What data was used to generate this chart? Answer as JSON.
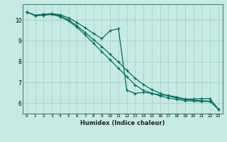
{
  "xlabel": "Humidex (Indice chaleur)",
  "bg_color": "#c8eae4",
  "grid_color": "#a0ccc4",
  "line_color": "#007060",
  "xlim": [
    -0.5,
    23.5
  ],
  "ylim": [
    5.5,
    10.75
  ],
  "yticks": [
    6,
    7,
    8,
    9,
    10
  ],
  "xticks": [
    0,
    1,
    2,
    3,
    4,
    5,
    6,
    7,
    8,
    9,
    10,
    11,
    12,
    13,
    14,
    15,
    16,
    17,
    18,
    19,
    20,
    21,
    22,
    23
  ],
  "series1_x": [
    0,
    1,
    2,
    3,
    4,
    5,
    6,
    7,
    8,
    9,
    10,
    11,
    12,
    13,
    14,
    15,
    16,
    17,
    18,
    19,
    20,
    21,
    22,
    23
  ],
  "series1_y": [
    10.38,
    10.22,
    10.27,
    10.3,
    10.25,
    10.1,
    9.88,
    9.62,
    9.35,
    9.1,
    9.48,
    9.58,
    6.62,
    6.47,
    6.52,
    6.47,
    6.4,
    6.37,
    6.3,
    6.2,
    6.2,
    6.22,
    6.22,
    5.72
  ],
  "series2_x": [
    0,
    1,
    2,
    3,
    4,
    5,
    6,
    7,
    8,
    9,
    10,
    11,
    12,
    13,
    14,
    15,
    16,
    17,
    18,
    19,
    20,
    21,
    22,
    23
  ],
  "series2_y": [
    10.38,
    10.22,
    10.27,
    10.28,
    10.2,
    10.0,
    9.72,
    9.4,
    9.05,
    8.72,
    8.35,
    7.98,
    7.58,
    7.2,
    6.9,
    6.65,
    6.48,
    6.35,
    6.25,
    6.18,
    6.15,
    6.12,
    6.1,
    5.72
  ],
  "series3_x": [
    0,
    1,
    2,
    3,
    4,
    5,
    6,
    7,
    8,
    9,
    10,
    11,
    12,
    13,
    14,
    15,
    16,
    17,
    18,
    19,
    20,
    21,
    22,
    23
  ],
  "series3_y": [
    10.38,
    10.2,
    10.22,
    10.26,
    10.15,
    9.95,
    9.65,
    9.28,
    8.88,
    8.48,
    8.08,
    7.68,
    7.28,
    6.88,
    6.62,
    6.48,
    6.35,
    6.25,
    6.18,
    6.12,
    6.1,
    6.08,
    6.08,
    5.72
  ]
}
